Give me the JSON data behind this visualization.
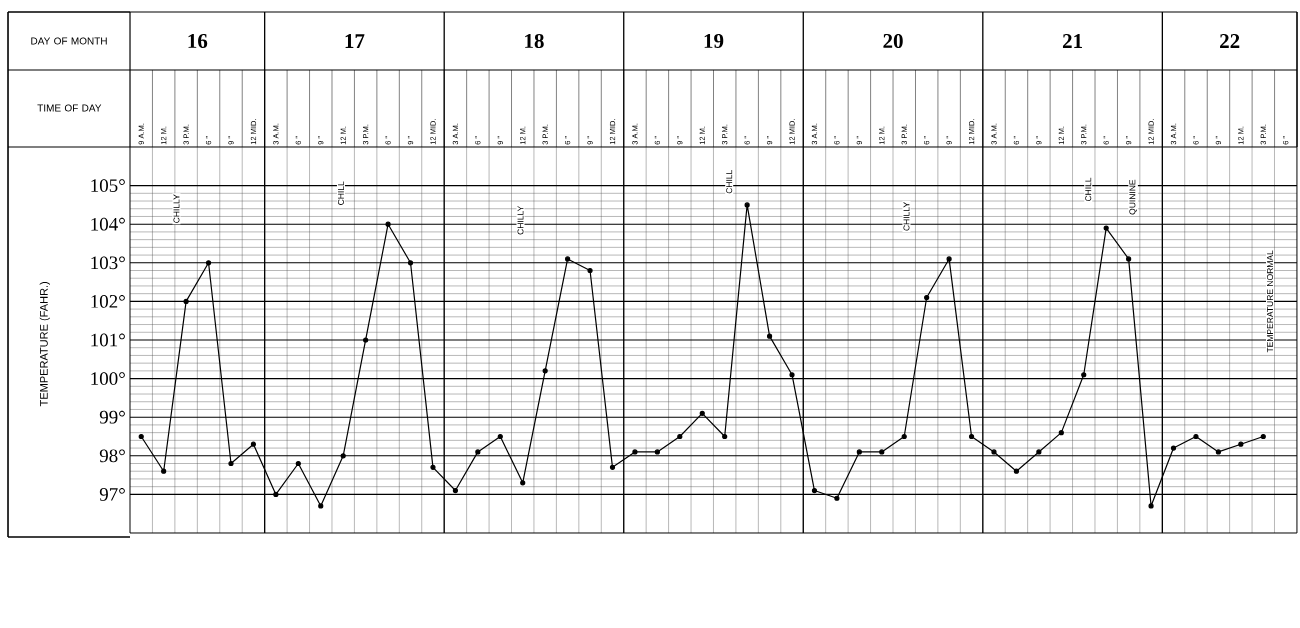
{
  "chart_data": {
    "type": "line",
    "xlabel": "TIME OF DAY",
    "ylabel": "TEMPERATURE (FAHR.)",
    "categories": [
      "9 A.M.",
      "12 M.",
      "3 P.M.",
      "6 \"",
      "9 \"",
      "12 MID.",
      "3 A.M.",
      "6 \"",
      "9 \"",
      "12 M.",
      "3 P.M.",
      "6 \"",
      "9 \"",
      "12 MID.",
      "3 A.M.",
      "6 \"",
      "9 \"",
      "12 M.",
      "3 P.M.",
      "6 \"",
      "9 \"",
      "12 MID.",
      "3 A.M.",
      "6 \"",
      "9 \"",
      "12 M.",
      "3 P.M.",
      "6 \"",
      "9 \"",
      "12 MID.",
      "3 A.M.",
      "6 \"",
      "9 \"",
      "12 M.",
      "3 P.M.",
      "6 \"",
      "9 \"",
      "12 MID.",
      "3 A.M.",
      "6 \"",
      "9 \"",
      "12 M.",
      "3 P.M.",
      "6 \"",
      "9 \"",
      "12 MID.",
      "3 A.M.",
      "6 \"",
      "9 \"",
      "12 M.",
      "3 P.M.",
      "6 \""
    ],
    "series": [
      {
        "color": "#000000",
        "values": [
          98.5,
          97.6,
          102.0,
          103.0,
          97.8,
          98.3,
          97.0,
          97.8,
          96.7,
          98.0,
          101.0,
          104.0,
          103.0,
          97.7,
          97.1,
          98.1,
          98.5,
          97.3,
          100.2,
          103.1,
          102.8,
          97.7,
          98.1,
          98.1,
          98.5,
          99.1,
          98.5,
          104.5,
          101.1,
          100.1,
          97.1,
          96.9,
          98.1,
          98.1,
          98.5,
          102.1,
          103.1,
          98.5,
          98.1,
          97.6,
          98.1,
          98.6,
          100.1,
          103.9,
          103.1,
          96.7,
          98.2,
          98.5,
          98.1,
          98.3,
          98.5,
          null
        ]
      }
    ],
    "ylim": [
      96,
      106
    ],
    "yticks": [
      {
        "value": 97,
        "label": "97°"
      },
      {
        "value": 98,
        "label": "98°"
      },
      {
        "value": 99,
        "label": "99°"
      },
      {
        "value": 100,
        "label": "100°"
      },
      {
        "value": 101,
        "label": "101°"
      },
      {
        "value": 102,
        "label": "102°"
      },
      {
        "value": 103,
        "label": "103°"
      },
      {
        "value": 104,
        "label": "104°"
      },
      {
        "value": 105,
        "label": "105°"
      }
    ],
    "annotations": [
      "DAY OF MONTH",
      "16",
      "17",
      "18",
      "19",
      "20",
      "21",
      "22",
      "CHILLY",
      "CHILL",
      "CHILLY",
      "CHILL",
      "CHILLY",
      "CHILL",
      "QUININE",
      "TEMPERATURE NORMAL"
    ],
    "grid": true,
    "marker": "circle",
    "line_style": "solid"
  }
}
